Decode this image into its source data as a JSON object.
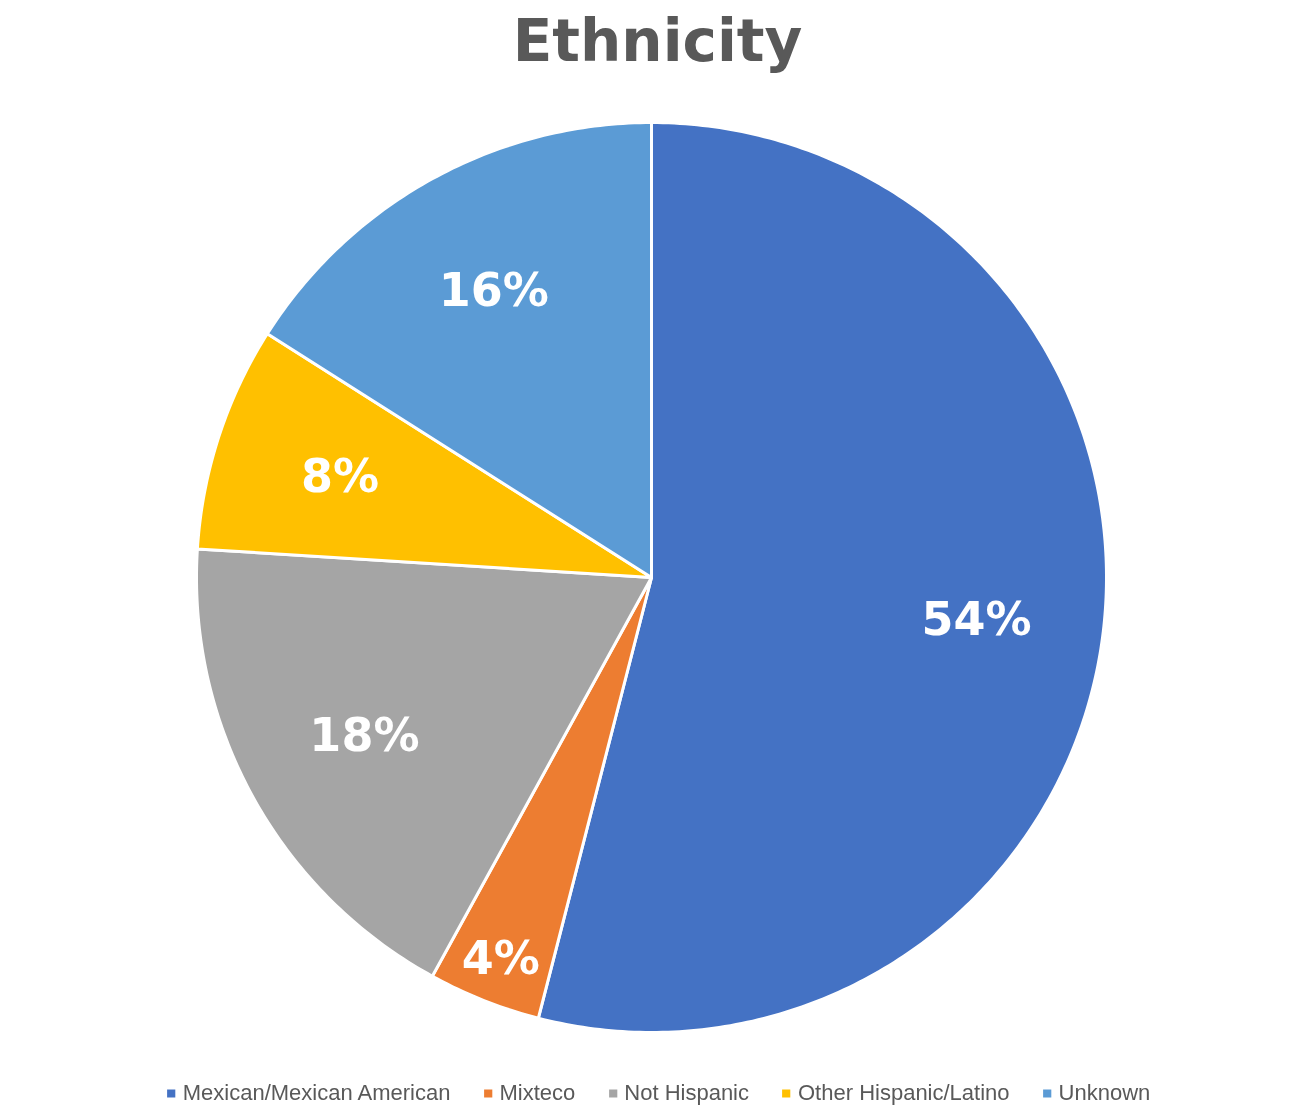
{
  "chart_data": {
    "type": "pie",
    "title": "Ethnicity",
    "categories": [
      "Mexican/Mexican American",
      "Mixteco",
      "Not Hispanic",
      "Other Hispanic/Latino",
      "Unknown"
    ],
    "values": [
      54,
      4,
      18,
      8,
      16
    ],
    "colors": [
      "#4472c4",
      "#ed7d31",
      "#a5a5a5",
      "#ffc000",
      "#5b9bd5"
    ],
    "value_labels": [
      "54%",
      "4%",
      "18%",
      "8%",
      "16%"
    ],
    "legend": "bottom"
  }
}
